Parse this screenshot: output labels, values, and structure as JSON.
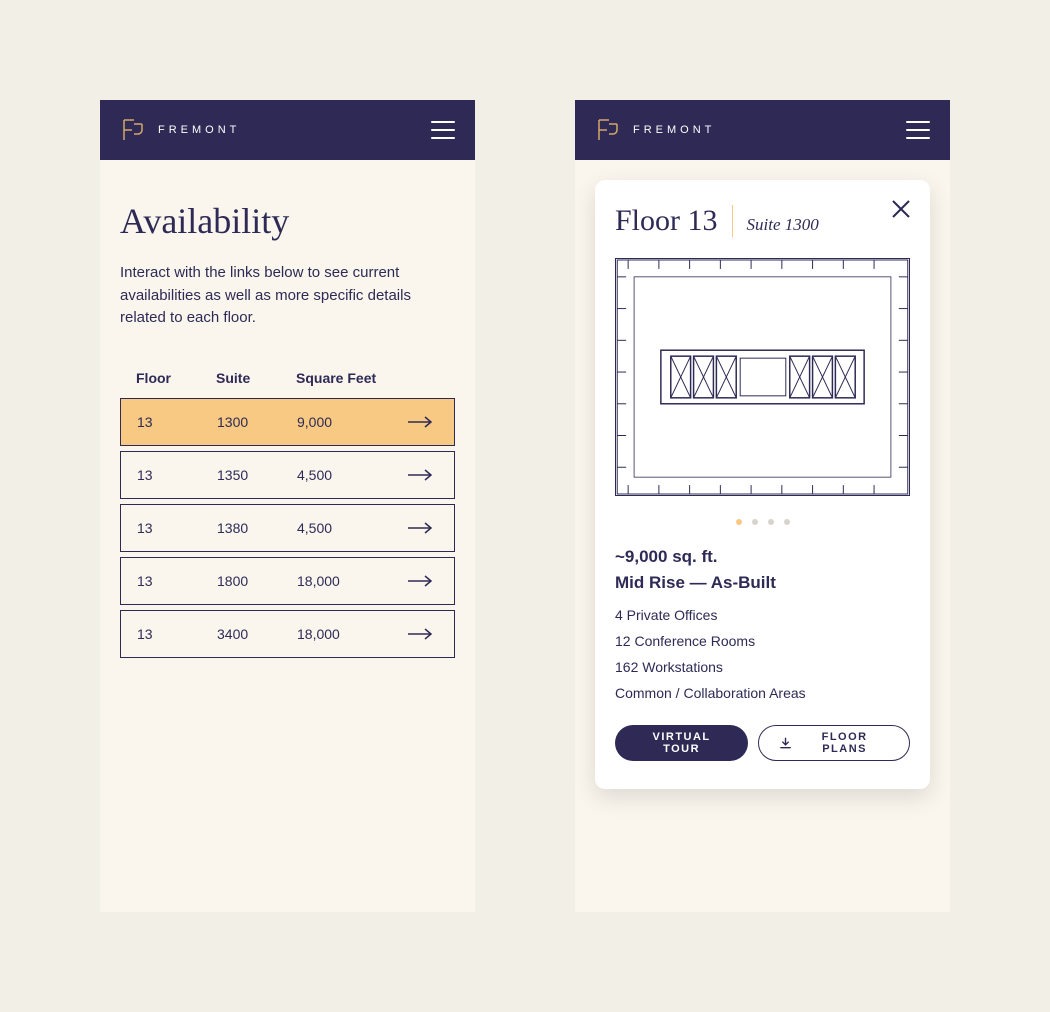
{
  "brand": {
    "name": "FREMONT",
    "logo_stroke": "#d4a86a",
    "header_bg": "#2e2a55"
  },
  "left": {
    "title": "Availability",
    "description": "Interact with the links below to see current availabilities as well as more specific details related to each floor.",
    "columns": {
      "floor": "Floor",
      "suite": "Suite",
      "sqft": "Square Feet"
    },
    "rows": [
      {
        "floor": "13",
        "suite": "1300",
        "sqft": "9,000",
        "selected": true
      },
      {
        "floor": "13",
        "suite": "1350",
        "sqft": "4,500",
        "selected": false
      },
      {
        "floor": "13",
        "suite": "1380",
        "sqft": "4,500",
        "selected": false
      },
      {
        "floor": "13",
        "suite": "1800",
        "sqft": "18,000",
        "selected": false
      },
      {
        "floor": "13",
        "suite": "3400",
        "sqft": "18,000",
        "selected": false
      }
    ],
    "row_selected_bg": "#f7c982",
    "row_border": "#2e2a55"
  },
  "right": {
    "floor_label": "Floor 13",
    "suite_label": "Suite 1300",
    "sqft": "~9,000 sq. ft.",
    "type": "Mid Rise — As-Built",
    "features": [
      "4 Private Offices",
      "12 Conference Rooms",
      "162 Workstations",
      "Common / Collaboration Areas"
    ],
    "pager": {
      "count": 4,
      "active": 0,
      "active_color": "#f7c982",
      "inactive_color": "#d8d4cc"
    },
    "buttons": {
      "virtual_tour": "VIRTUAL TOUR",
      "floor_plans": "FLOOR PLANS"
    },
    "floorplan": {
      "stroke": "#2e2a55",
      "rooms": 10,
      "blocks": 6
    }
  },
  "colors": {
    "page_bg": "#f2efe7",
    "phone_bg": "#faf6ee",
    "card_bg": "#ffffff",
    "navy": "#2e2a55",
    "accent": "#f7c982"
  }
}
